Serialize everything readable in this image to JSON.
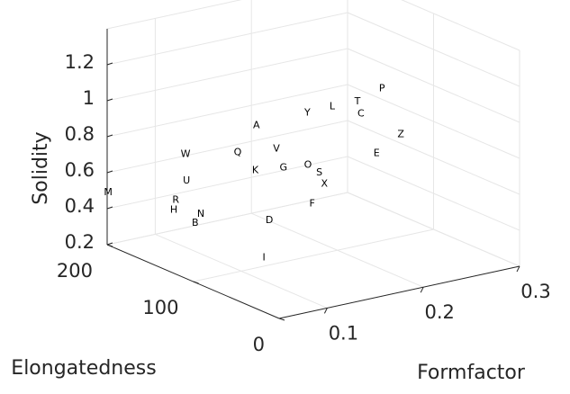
{
  "chart_data": {
    "type": "scatter3d",
    "xlabel": "Formfactor",
    "ylabel": "Elongatedness",
    "zlabel": "Solidity",
    "xlim": [
      0.05,
      0.3
    ],
    "ylim": [
      0,
      200
    ],
    "zlim": [
      0.2,
      1.4
    ],
    "x_ticks": [
      "0.1",
      "0.2",
      "0.3"
    ],
    "y_ticks": [
      "0",
      "100",
      "200"
    ],
    "z_ticks": [
      "0.2",
      "0.4",
      "0.6",
      "0.8",
      "1",
      "1.2"
    ],
    "grid": true,
    "points": [
      {
        "label": "A",
        "x": 0.148,
        "y": 136,
        "z": 0.88
      },
      {
        "label": "B",
        "x": 0.096,
        "y": 149,
        "z": 0.37
      },
      {
        "label": "C",
        "x": 0.262,
        "y": 142,
        "z": 0.8
      },
      {
        "label": "D",
        "x": 0.14,
        "y": 112,
        "z": 0.41
      },
      {
        "label": "E",
        "x": 0.264,
        "y": 126,
        "z": 0.61
      },
      {
        "label": "F",
        "x": 0.188,
        "y": 116,
        "z": 0.44
      },
      {
        "label": "G",
        "x": 0.177,
        "y": 137,
        "z": 0.61
      },
      {
        "label": "H",
        "x": 0.088,
        "y": 165,
        "z": 0.42
      },
      {
        "label": "I",
        "x": 0.12,
        "y": 96,
        "z": 0.26
      },
      {
        "label": "K",
        "x": 0.153,
        "y": 143,
        "z": 0.61
      },
      {
        "label": "L",
        "x": 0.242,
        "y": 153,
        "z": 0.84
      },
      {
        "label": "M",
        "x": 0.051,
        "y": 200,
        "z": 0.49
      },
      {
        "label": "N",
        "x": 0.1,
        "y": 147,
        "z": 0.42
      },
      {
        "label": "O",
        "x": 0.198,
        "y": 132,
        "z": 0.61
      },
      {
        "label": "P",
        "x": 0.291,
        "y": 150,
        "z": 0.89
      },
      {
        "label": "Q",
        "x": 0.141,
        "y": 150,
        "z": 0.71
      },
      {
        "label": "R",
        "x": 0.091,
        "y": 166,
        "z": 0.47
      },
      {
        "label": "S",
        "x": 0.208,
        "y": 130,
        "z": 0.56
      },
      {
        "label": "T",
        "x": 0.262,
        "y": 146,
        "z": 0.86
      },
      {
        "label": "U",
        "x": 0.103,
        "y": 167,
        "z": 0.56
      },
      {
        "label": "V",
        "x": 0.176,
        "y": 144,
        "z": 0.7
      },
      {
        "label": "W",
        "x": 0.111,
        "y": 177,
        "z": 0.68
      },
      {
        "label": "X",
        "x": 0.208,
        "y": 124,
        "z": 0.51
      },
      {
        "label": "Y",
        "x": 0.209,
        "y": 145,
        "z": 0.86
      },
      {
        "label": "Z",
        "x": 0.291,
        "y": 128,
        "z": 0.68
      }
    ]
  }
}
